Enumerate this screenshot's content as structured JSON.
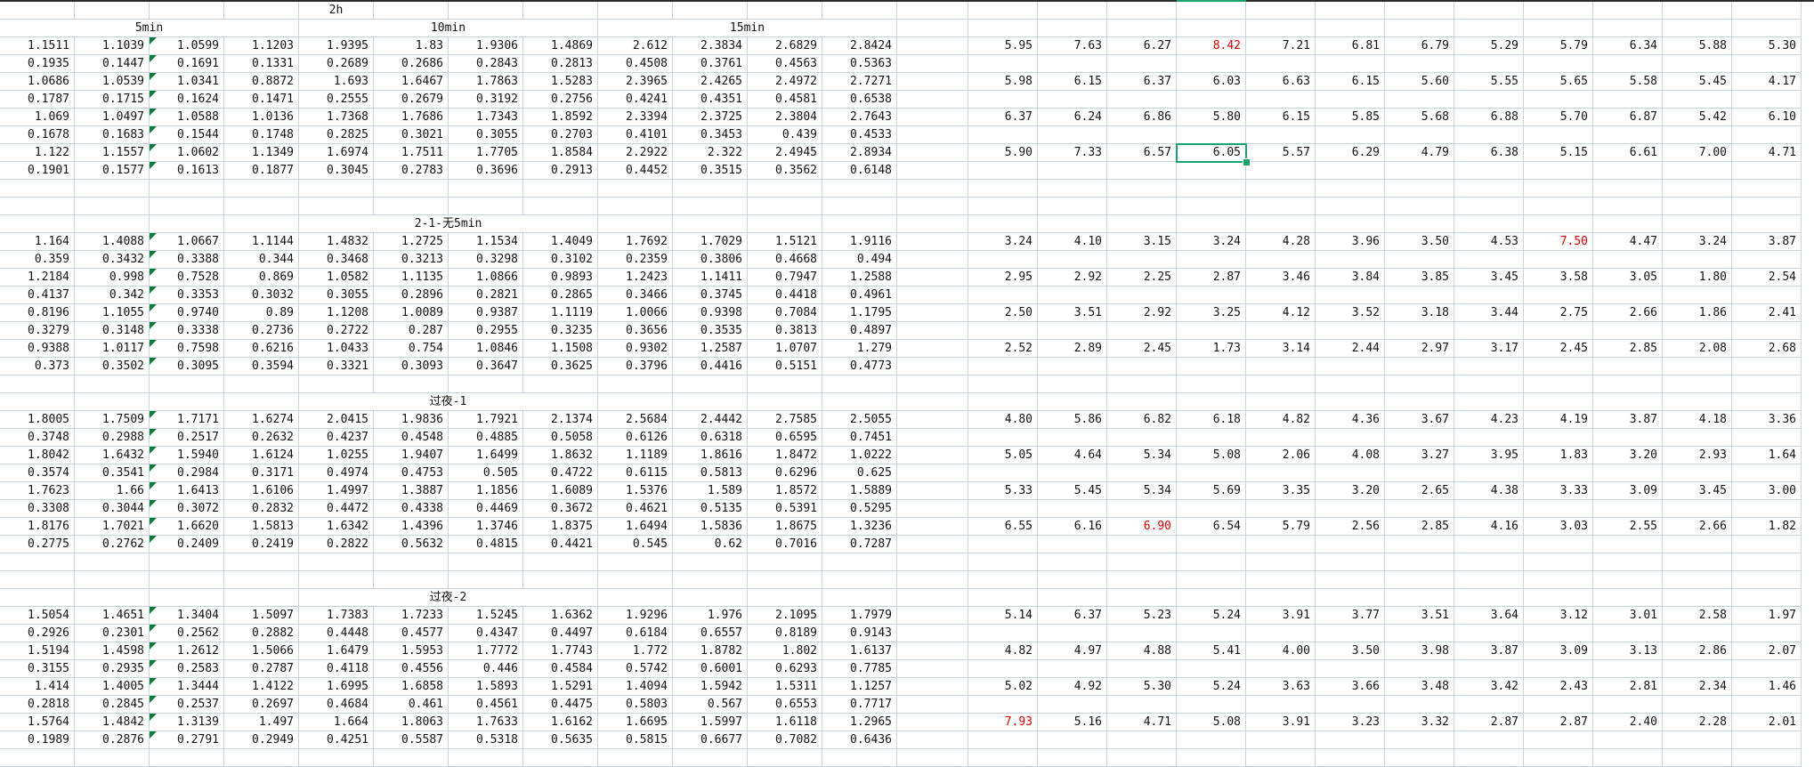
{
  "sheet": {
    "section_labels": {
      "top": "2h",
      "col_5min": "5min",
      "col_10min": "10min",
      "col_15min": "15min",
      "s2": "2-1-无5min",
      "s3": "过夜-1",
      "s4": "过夜-2"
    },
    "left_blocks": [
      {
        "start_row": 2,
        "rows": [
          [
            "1.1511",
            "1.1039",
            "1.0599",
            "1.1203",
            "1.9395",
            "1.83",
            "1.9306",
            "1.4869",
            "2.612",
            "2.3834",
            "2.6829",
            "2.8424"
          ],
          [
            "0.1935",
            "0.1447",
            "0.1691",
            "0.1331",
            "0.2689",
            "0.2686",
            "0.2843",
            "0.2813",
            "0.4508",
            "0.3761",
            "0.4563",
            "0.5363"
          ],
          [
            "1.0686",
            "1.0539",
            "1.0341",
            "0.8872",
            "1.693",
            "1.6467",
            "1.7863",
            "1.5283",
            "2.3965",
            "2.4265",
            "2.4972",
            "2.7271"
          ],
          [
            "0.1787",
            "0.1715",
            "0.1624",
            "0.1471",
            "0.2555",
            "0.2679",
            "0.3192",
            "0.2756",
            "0.4241",
            "0.4351",
            "0.4581",
            "0.6538"
          ],
          [
            "1.069",
            "1.0497",
            "1.0588",
            "1.0136",
            "1.7368",
            "1.7686",
            "1.7343",
            "1.8592",
            "2.3394",
            "2.3725",
            "2.3804",
            "2.7643"
          ],
          [
            "0.1678",
            "0.1683",
            "0.1544",
            "0.1748",
            "0.2825",
            "0.3021",
            "0.3055",
            "0.2703",
            "0.4101",
            "0.3453",
            "0.439",
            "0.4533"
          ],
          [
            "1.122",
            "1.1557",
            "1.0602",
            "1.1349",
            "1.6974",
            "1.7511",
            "1.7705",
            "1.8584",
            "2.2922",
            "2.322",
            "2.4945",
            "2.8934"
          ],
          [
            "0.1901",
            "0.1577",
            "0.1613",
            "0.1877",
            "0.3045",
            "0.2783",
            "0.3696",
            "0.2913",
            "0.4452",
            "0.3515",
            "0.3562",
            "0.6148"
          ]
        ]
      },
      {
        "start_row": 13,
        "rows": [
          [
            "1.164",
            "1.4088",
            "1.0667",
            "1.1144",
            "1.4832",
            "1.2725",
            "1.1534",
            "1.4049",
            "1.7692",
            "1.7029",
            "1.5121",
            "1.9116"
          ],
          [
            "0.359",
            "0.3432",
            "0.3388",
            "0.344",
            "0.3468",
            "0.3213",
            "0.3298",
            "0.3102",
            "0.2359",
            "0.3806",
            "0.4668",
            "0.494"
          ],
          [
            "1.2184",
            "0.998",
            "0.7528",
            "0.869",
            "1.0582",
            "1.1135",
            "1.0866",
            "0.9893",
            "1.2423",
            "1.1411",
            "0.7947",
            "1.2588"
          ],
          [
            "0.4137",
            "0.342",
            "0.3353",
            "0.3032",
            "0.3055",
            "0.2896",
            "0.2821",
            "0.2865",
            "0.3466",
            "0.3745",
            "0.4418",
            "0.4961"
          ],
          [
            "0.8196",
            "1.1055",
            "0.9740",
            "0.89",
            "1.1208",
            "1.0089",
            "0.9387",
            "1.1119",
            "1.0066",
            "0.9398",
            "0.7084",
            "1.1795"
          ],
          [
            "0.3279",
            "0.3148",
            "0.3338",
            "0.2736",
            "0.2722",
            "0.287",
            "0.2955",
            "0.3235",
            "0.3656",
            "0.3535",
            "0.3813",
            "0.4897"
          ],
          [
            "0.9388",
            "1.0117",
            "0.7598",
            "0.6216",
            "1.0433",
            "0.754",
            "1.0846",
            "1.1508",
            "0.9302",
            "1.2587",
            "1.0707",
            "1.279"
          ],
          [
            "0.373",
            "0.3502",
            "0.3095",
            "0.3594",
            "0.3321",
            "0.3093",
            "0.3647",
            "0.3625",
            "0.3796",
            "0.4416",
            "0.5151",
            "0.4773"
          ]
        ]
      },
      {
        "start_row": 23,
        "rows": [
          [
            "1.8005",
            "1.7509",
            "1.7171",
            "1.6274",
            "2.0415",
            "1.9836",
            "1.7921",
            "2.1374",
            "2.5684",
            "2.4442",
            "2.7585",
            "2.5055"
          ],
          [
            "0.3748",
            "0.2988",
            "0.2517",
            "0.2632",
            "0.4237",
            "0.4548",
            "0.4885",
            "0.5058",
            "0.6126",
            "0.6318",
            "0.6595",
            "0.7451"
          ],
          [
            "1.8042",
            "1.6432",
            "1.5940",
            "1.6124",
            "1.0255",
            "1.9407",
            "1.6499",
            "1.8632",
            "1.1189",
            "1.8616",
            "1.8472",
            "1.0222"
          ],
          [
            "0.3574",
            "0.3541",
            "0.2984",
            "0.3171",
            "0.4974",
            "0.4753",
            "0.505",
            "0.4722",
            "0.6115",
            "0.5813",
            "0.6296",
            "0.625"
          ],
          [
            "1.7623",
            "1.66",
            "1.6413",
            "1.6106",
            "1.4997",
            "1.3887",
            "1.1856",
            "1.6089",
            "1.5376",
            "1.589",
            "1.8572",
            "1.5889"
          ],
          [
            "0.3308",
            "0.3044",
            "0.3072",
            "0.2832",
            "0.4472",
            "0.4338",
            "0.4469",
            "0.3672",
            "0.4621",
            "0.5135",
            "0.5391",
            "0.5295"
          ],
          [
            "1.8176",
            "1.7021",
            "1.6620",
            "1.5813",
            "1.6342",
            "1.4396",
            "1.3746",
            "1.8375",
            "1.6494",
            "1.5836",
            "1.8675",
            "1.3236"
          ],
          [
            "0.2775",
            "0.2762",
            "0.2409",
            "0.2419",
            "0.2822",
            "0.5632",
            "0.4815",
            "0.4421",
            "0.545",
            "0.62",
            "0.7016",
            "0.7287"
          ]
        ]
      },
      {
        "start_row": 34,
        "rows": [
          [
            "1.5054",
            "1.4651",
            "1.3404",
            "1.5097",
            "1.7383",
            "1.7233",
            "1.5245",
            "1.6362",
            "1.9296",
            "1.976",
            "2.1095",
            "1.7979"
          ],
          [
            "0.2926",
            "0.2301",
            "0.2562",
            "0.2882",
            "0.4448",
            "0.4577",
            "0.4347",
            "0.4497",
            "0.6184",
            "0.6557",
            "0.8189",
            "0.9143"
          ],
          [
            "1.5194",
            "1.4598",
            "1.2612",
            "1.5066",
            "1.6479",
            "1.5953",
            "1.7772",
            "1.7743",
            "1.772",
            "1.8782",
            "1.802",
            "1.6137"
          ],
          [
            "0.3155",
            "0.2935",
            "0.2583",
            "0.2787",
            "0.4118",
            "0.4556",
            "0.446",
            "0.4584",
            "0.5742",
            "0.6001",
            "0.6293",
            "0.7785"
          ],
          [
            "1.414",
            "1.4005",
            "1.3444",
            "1.4122",
            "1.6995",
            "1.6858",
            "1.5893",
            "1.5291",
            "1.4094",
            "1.5942",
            "1.5311",
            "1.1257"
          ],
          [
            "0.2818",
            "0.2845",
            "0.2537",
            "0.2697",
            "0.4684",
            "0.461",
            "0.4561",
            "0.4475",
            "0.5803",
            "0.567",
            "0.6553",
            "0.7717"
          ],
          [
            "1.5764",
            "1.4842",
            "1.3139",
            "1.497",
            "1.664",
            "1.8063",
            "1.7633",
            "1.6162",
            "1.6695",
            "1.5997",
            "1.6118",
            "1.2965"
          ],
          [
            "0.1989",
            "0.2876",
            "0.2791",
            "0.2949",
            "0.4251",
            "0.5587",
            "0.5318",
            "0.5635",
            "0.5815",
            "0.6677",
            "0.7082",
            "0.6436"
          ]
        ]
      }
    ],
    "right_blocks": [
      {
        "rows": [
          {
            "row": 2,
            "values": [
              "5.95",
              "7.63",
              "6.27",
              "8.42",
              "7.21",
              "6.81",
              "6.79",
              "5.29",
              "5.79",
              "6.34",
              "5.88",
              "5.30"
            ]
          },
          {
            "row": 4,
            "values": [
              "5.98",
              "6.15",
              "6.37",
              "6.03",
              "6.63",
              "6.15",
              "5.60",
              "5.55",
              "5.65",
              "5.58",
              "5.45",
              "4.17"
            ]
          },
          {
            "row": 6,
            "values": [
              "6.37",
              "6.24",
              "6.86",
              "5.80",
              "6.15",
              "5.85",
              "5.68",
              "6.88",
              "5.70",
              "6.87",
              "5.42",
              "6.10"
            ]
          },
          {
            "row": 8,
            "values": [
              "5.90",
              "7.33",
              "6.57",
              "6.05",
              "5.57",
              "6.29",
              "4.79",
              "6.38",
              "5.15",
              "6.61",
              "7.00",
              "4.71"
            ]
          }
        ]
      },
      {
        "rows": [
          {
            "row": 13,
            "values": [
              "3.24",
              "4.10",
              "3.15",
              "3.24",
              "4.28",
              "3.96",
              "3.50",
              "4.53",
              "7.50",
              "4.47",
              "3.24",
              "3.87"
            ]
          },
          {
            "row": 15,
            "values": [
              "2.95",
              "2.92",
              "2.25",
              "2.87",
              "3.46",
              "3.84",
              "3.85",
              "3.45",
              "3.58",
              "3.05",
              "1.80",
              "2.54"
            ]
          },
          {
            "row": 17,
            "values": [
              "2.50",
              "3.51",
              "2.92",
              "3.25",
              "4.12",
              "3.52",
              "3.18",
              "3.44",
              "2.75",
              "2.66",
              "1.86",
              "2.41"
            ]
          },
          {
            "row": 19,
            "values": [
              "2.52",
              "2.89",
              "2.45",
              "1.73",
              "3.14",
              "2.44",
              "2.97",
              "3.17",
              "2.45",
              "2.85",
              "2.08",
              "2.68"
            ]
          }
        ]
      },
      {
        "rows": [
          {
            "row": 23,
            "values": [
              "4.80",
              "5.86",
              "6.82",
              "6.18",
              "4.82",
              "4.36",
              "3.67",
              "4.23",
              "4.19",
              "3.87",
              "4.18",
              "3.36"
            ]
          },
          {
            "row": 25,
            "values": [
              "5.05",
              "4.64",
              "5.34",
              "5.08",
              "2.06",
              "4.08",
              "3.27",
              "3.95",
              "1.83",
              "3.20",
              "2.93",
              "1.64"
            ]
          },
          {
            "row": 27,
            "values": [
              "5.33",
              "5.45",
              "5.34",
              "5.69",
              "3.35",
              "3.20",
              "2.65",
              "4.38",
              "3.33",
              "3.09",
              "3.45",
              "3.00"
            ]
          },
          {
            "row": 29,
            "values": [
              "6.55",
              "6.16",
              "6.90",
              "6.54",
              "5.79",
              "2.56",
              "2.85",
              "4.16",
              "3.03",
              "2.55",
              "2.66",
              "1.82"
            ]
          }
        ]
      },
      {
        "rows": [
          {
            "row": 34,
            "values": [
              "5.14",
              "6.37",
              "5.23",
              "5.24",
              "3.91",
              "3.77",
              "3.51",
              "3.64",
              "3.12",
              "3.01",
              "2.58",
              "1.97"
            ]
          },
          {
            "row": 36,
            "values": [
              "4.82",
              "4.97",
              "4.88",
              "5.41",
              "4.00",
              "3.50",
              "3.98",
              "3.87",
              "3.09",
              "3.13",
              "2.86",
              "2.07"
            ]
          },
          {
            "row": 38,
            "values": [
              "5.02",
              "4.92",
              "5.30",
              "5.24",
              "3.63",
              "3.66",
              "3.48",
              "3.42",
              "2.43",
              "2.81",
              "2.34",
              "1.46"
            ]
          },
          {
            "row": 40,
            "values": [
              "7.93",
              "5.16",
              "4.71",
              "5.08",
              "3.91",
              "3.23",
              "3.32",
              "2.87",
              "2.87",
              "2.40",
              "2.28",
              "2.01"
            ]
          }
        ]
      }
    ],
    "red_values": [
      {
        "block": 0,
        "row_idx": 0,
        "col": 3
      },
      {
        "block": 1,
        "row_idx": 0,
        "col": 8
      },
      {
        "block": 2,
        "row_idx": 3,
        "col": 2
      },
      {
        "block": 3,
        "row_idx": 3,
        "col": 0
      }
    ],
    "selected_cell": {
      "block": 0,
      "row_idx": 3,
      "col": 3
    },
    "colors": {
      "grid": "#c7d1e0",
      "red_text": "#e00000",
      "selection": "#1aa36a",
      "triangle": "#0f7b3a"
    }
  }
}
